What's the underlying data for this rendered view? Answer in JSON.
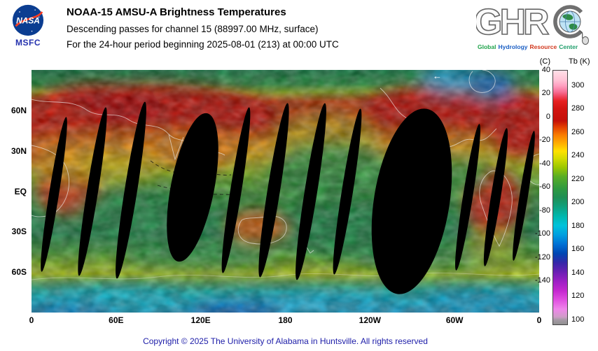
{
  "header": {
    "title": "NOAA-15 AMSU-A Brightness Temperatures",
    "subtitle1": "Descending passes for channel 15 (88997.00 MHz, surface)",
    "subtitle2": "For the 24-hour period beginning 2025-08-01 (213) at 00:00 UTC",
    "nasa_text": "NASA",
    "msfc_text": "MSFC"
  },
  "ghrc_logo": {
    "letters": "GHR",
    "tagline": [
      {
        "text": "Global",
        "color": "#1fa34a"
      },
      {
        "text": "Hydrology",
        "color": "#1b5fc4"
      },
      {
        "text": "Resource",
        "color": "#d2391f"
      },
      {
        "text": "Center",
        "color": "#1f9e6b"
      }
    ]
  },
  "map": {
    "direction_marker": "←",
    "lat_ticks": [
      {
        "label": "60N",
        "deg": 60
      },
      {
        "label": "30N",
        "deg": 30
      },
      {
        "label": "EQ",
        "deg": 0
      },
      {
        "label": "30S",
        "deg": -30
      },
      {
        "label": "60S",
        "deg": -60
      }
    ],
    "lon_ticks": [
      {
        "label": "0",
        "deg": 0
      },
      {
        "label": "60E",
        "deg": 60
      },
      {
        "label": "120E",
        "deg": 120
      },
      {
        "label": "180",
        "deg": 180
      },
      {
        "label": "120W",
        "deg": 240
      },
      {
        "label": "60W",
        "deg": 300
      },
      {
        "label": "0",
        "deg": 360
      }
    ]
  },
  "colorbar": {
    "left_label": "(C)",
    "right_label": "Tb (K)",
    "top_kelvin": 313.15,
    "bottom_kelvin": 95,
    "celsius_ticks": [
      40,
      20,
      0,
      -20,
      -40,
      -60,
      -80,
      -100,
      -120,
      -140
    ],
    "kelvin_ticks": [
      300,
      280,
      260,
      240,
      220,
      200,
      180,
      160,
      140,
      120,
      100
    ]
  },
  "footer": {
    "copyright": "Copyright © 2025 The University of Alabama in Huntsville. All rights reserved"
  },
  "chart_data": {
    "type": "heatmap",
    "title": "NOAA-15 AMSU-A Brightness Temperatures",
    "subtitle": [
      "Descending passes for channel 15 (88997.00 MHz, surface)",
      "For the 24-hour period beginning 2025-08-01 (213) at 00:00 UTC"
    ],
    "projection": "equirectangular world map, longitude 0E eastward to 360 (0) left-to-right, latitude 90N to 90S top-to-bottom",
    "x_ticks": [
      "0",
      "60E",
      "120E",
      "180",
      "120W",
      "60W",
      "0"
    ],
    "y_ticks": [
      "60N",
      "30N",
      "EQ",
      "30S",
      "60S"
    ],
    "colorbar": {
      "left_unit": "(C)",
      "right_unit": "Tb (K)",
      "celsius_ticks": [
        40,
        20,
        0,
        -20,
        -40,
        -60,
        -80,
        -100,
        -120,
        -140
      ],
      "kelvin_ticks": [
        300,
        280,
        260,
        240,
        220,
        200,
        180,
        160,
        140,
        120,
        100
      ],
      "orientation": "vertical, right of map",
      "colors_top_to_bottom": [
        "pale pink",
        "pink",
        "red",
        "red-orange",
        "orange",
        "yellow",
        "yellow-green",
        "green",
        "sea green",
        "teal",
        "cyan",
        "light blue",
        "blue",
        "dark blue",
        "indigo",
        "violet",
        "magenta",
        "light magenta",
        "gray"
      ]
    },
    "qualitative_field": "Warm brightness temperatures (red/orange, ~270-300 K) over northern-hemisphere continents (Eurasia, North Africa, North America, North Atlantic), South America and Australia; yellow transition zones (~240-255 K); green oceans (~210-235 K); yellow-green circumpolar band near 60S; cyan/blue cold band (~150-200 K) along Antarctica; black lens-shaped no-data gaps between ~14 descending satellite swaths, including two wide gaps near 100-120E and 110-130W"
  }
}
